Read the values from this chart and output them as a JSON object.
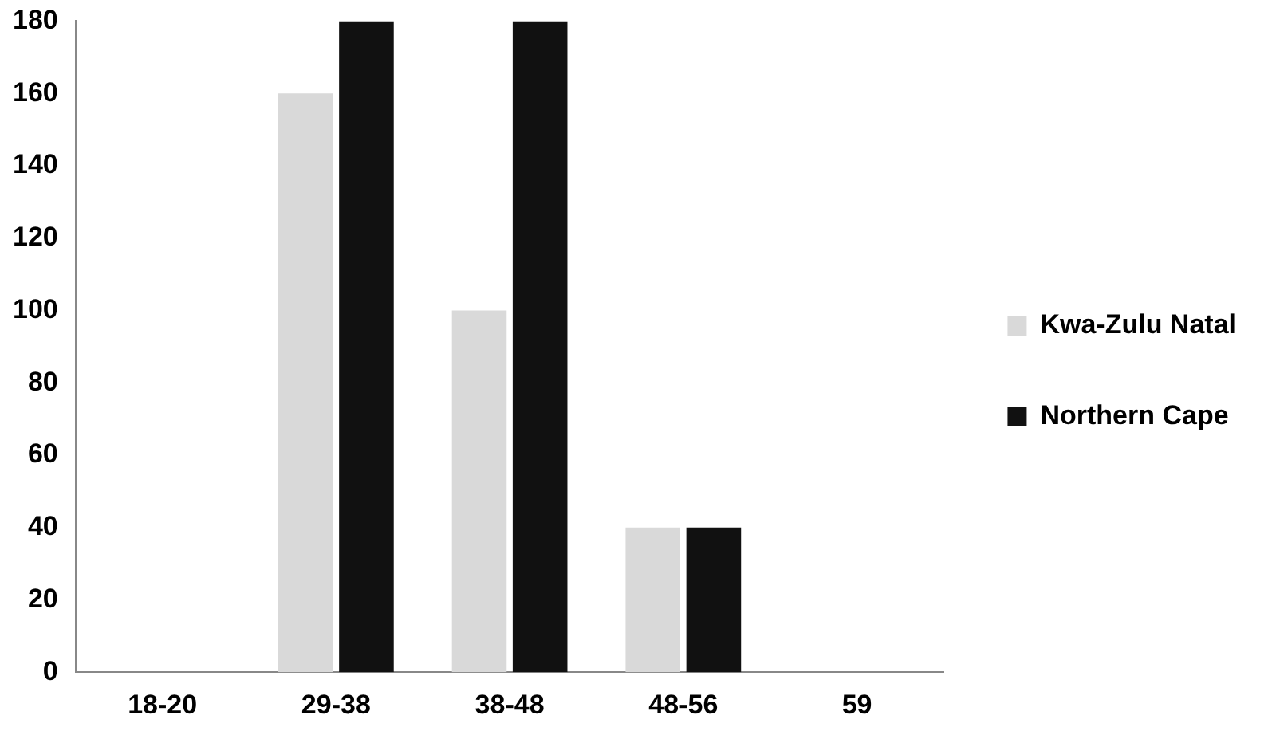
{
  "chart_data": {
    "type": "bar",
    "categories": [
      "18-20",
      "29-38",
      "38-48",
      "48-56",
      "59"
    ],
    "series": [
      {
        "name": "Kwa-Zulu Natal",
        "color": "#d9d9d9",
        "values": [
          0,
          160,
          100,
          40,
          0
        ]
      },
      {
        "name": "Northern Cape",
        "color": "#111111",
        "values": [
          0,
          180,
          180,
          40,
          0
        ]
      }
    ],
    "ylim": [
      0,
      180
    ],
    "yticks": [
      0,
      20,
      40,
      60,
      80,
      100,
      120,
      140,
      160,
      180
    ],
    "grid": false,
    "legend": "right"
  }
}
